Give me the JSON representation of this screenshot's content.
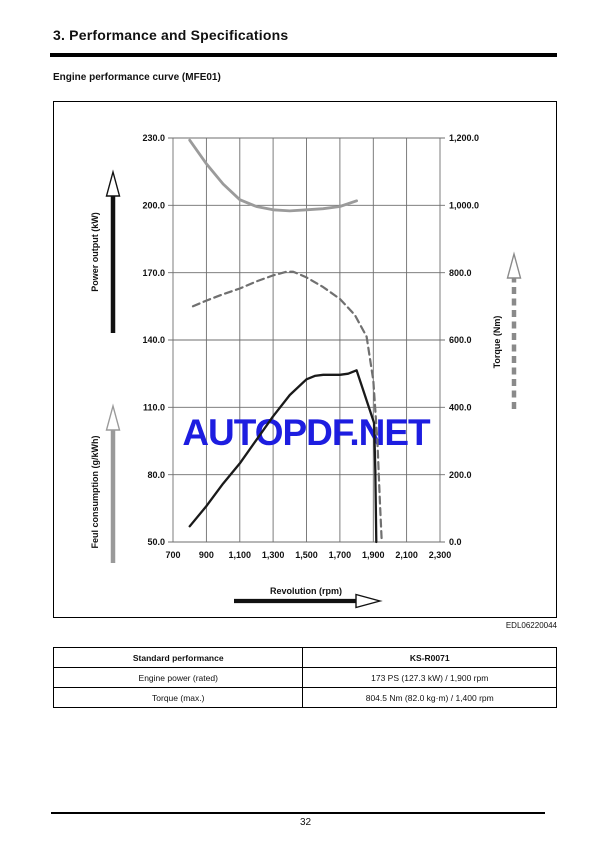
{
  "header": {
    "title": "3. Performance and Specifications"
  },
  "section": {
    "heading": "Engine performance curve (MFE01)"
  },
  "figure": {
    "code": "EDL06220044"
  },
  "chart_data": {
    "type": "line",
    "x_axis": {
      "label": "Revolution (rpm)",
      "range": [
        700,
        2300
      ],
      "ticks": [
        700,
        900,
        1100,
        1300,
        1500,
        1700,
        1900,
        2100,
        2300
      ],
      "tick_labels": [
        "700",
        "900",
        "1,100",
        "1,300",
        "1,500",
        "1,700",
        "1,900",
        "2,100",
        "2,300"
      ]
    },
    "left_axis": {
      "power_label": "Power output (kW)",
      "fuel_label": "Feul consumption (g/kWh)",
      "range": [
        50,
        230
      ],
      "ticks": [
        230,
        200,
        170,
        140,
        110,
        80,
        50
      ],
      "tick_labels": [
        "230.0",
        "200.0",
        "170.0",
        "140.0",
        "110.0",
        "80.0",
        "50.0"
      ]
    },
    "right_axis": {
      "label": "Torque (Nm)",
      "range": [
        0,
        1200
      ],
      "ticks": [
        1200,
        1000,
        800,
        600,
        400,
        200,
        0
      ],
      "tick_labels": [
        "1,200.0",
        "1,000.0",
        "800.0",
        "600.0",
        "400.0",
        "200.0",
        "0.0"
      ]
    },
    "grid": true,
    "legend": "none",
    "series": [
      {
        "name": "fuel-consumption",
        "axis": "left",
        "style": "solid",
        "color": "#9b9b9b",
        "width": 2.8,
        "points": [
          [
            800,
            229
          ],
          [
            900,
            218.5
          ],
          [
            1000,
            209.5
          ],
          [
            1100,
            202.5
          ],
          [
            1200,
            199.5
          ],
          [
            1300,
            198
          ],
          [
            1400,
            197.5
          ],
          [
            1500,
            198
          ],
          [
            1600,
            198.5
          ],
          [
            1700,
            199.5
          ],
          [
            1800,
            202
          ]
        ]
      },
      {
        "name": "torque",
        "axis": "right",
        "style": "dashed",
        "color": "#707070",
        "width": 2.2,
        "points": [
          [
            820,
            700
          ],
          [
            900,
            717
          ],
          [
            1000,
            736
          ],
          [
            1100,
            753
          ],
          [
            1200,
            774
          ],
          [
            1300,
            792
          ],
          [
            1380,
            803
          ],
          [
            1420,
            803
          ],
          [
            1500,
            786
          ],
          [
            1600,
            757
          ],
          [
            1700,
            722
          ],
          [
            1790,
            674
          ],
          [
            1860,
            610
          ],
          [
            1900,
            480
          ],
          [
            1925,
            300
          ],
          [
            1940,
            120
          ],
          [
            1950,
            10
          ]
        ]
      },
      {
        "name": "power-output",
        "axis": "left",
        "style": "solid",
        "color": "#1a1a1a",
        "width": 2.3,
        "points": [
          [
            800,
            57
          ],
          [
            900,
            66
          ],
          [
            1000,
            76
          ],
          [
            1100,
            85
          ],
          [
            1200,
            95.5
          ],
          [
            1300,
            106
          ],
          [
            1400,
            115.5
          ],
          [
            1500,
            122.5
          ],
          [
            1550,
            124
          ],
          [
            1600,
            124.5
          ],
          [
            1700,
            124.5
          ],
          [
            1750,
            125
          ],
          [
            1800,
            126.5
          ],
          [
            1905,
            103
          ],
          [
            1912,
            82
          ],
          [
            1918,
            50
          ]
        ]
      }
    ],
    "watermark": {
      "text": "AUTOPDF.NET",
      "color": "#1d1de0"
    }
  },
  "table": {
    "rows": [
      {
        "label": "Standard performance",
        "value": "KS-R0071",
        "header": true
      },
      {
        "label": "Engine power (rated)",
        "value": "173 PS (127.3 kW) / 1,900 rpm",
        "header": false
      },
      {
        "label": "Torque (max.)",
        "value": "804.5 Nm (82.0 kg·m) / 1,400 rpm",
        "header": false
      }
    ]
  },
  "footer": {
    "page_number": "32"
  }
}
